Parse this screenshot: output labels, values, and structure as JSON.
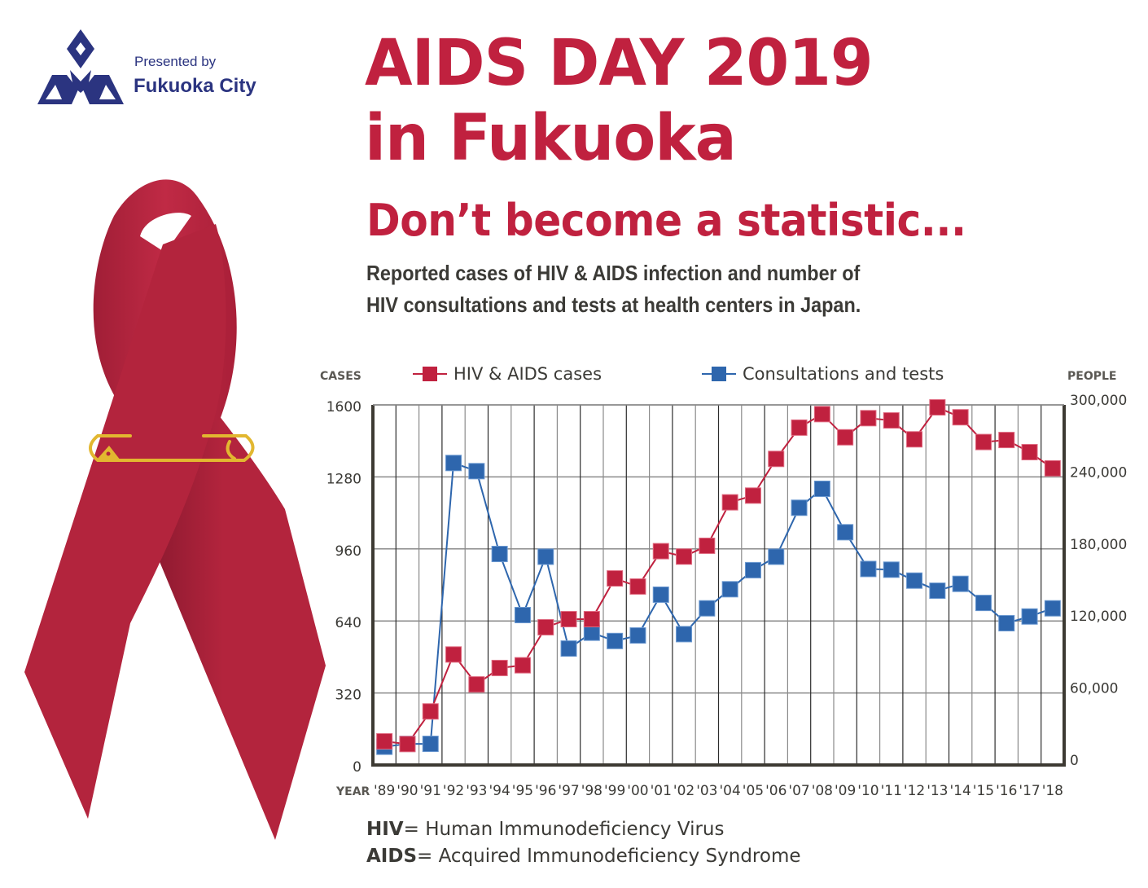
{
  "header": {
    "presented_by": "Presented by",
    "organization": "Fukuoka City",
    "title_line1": "AIDS DAY 2019",
    "title_line2": "in Fukuoka",
    "tagline": "Don’t become a statistic...",
    "subtitle_line1": "Reported cases of HIV & AIDS infection and number of",
    "subtitle_line2": "HIV consultations and tests at health centers in Japan."
  },
  "footer": {
    "definitions": [
      {
        "term": "HIV",
        "meaning": "= Human Immunodeficiency Virus"
      },
      {
        "term": "AIDS",
        "meaning": "= Acquired Immunodeficiency Syndrome"
      }
    ]
  },
  "colors": {
    "brand_red": "#c0213f",
    "logo_navy": "#2b3480",
    "series_red": "#c0213f",
    "series_blue": "#2e66ad",
    "ribbon_red": "#b3243d",
    "pin_gold": "#e2b730",
    "text_dark": "#3b3a36"
  },
  "chart_data": {
    "type": "line",
    "title": "Reported cases of HIV & AIDS infection and number of HIV consultations and tests at health centers in Japan.",
    "xlabel": "YEAR",
    "ylabel_left": "CASES",
    "ylabel_right": "PEOPLE",
    "x": [
      "'89",
      "'90",
      "'91",
      "'92",
      "'93",
      "'94",
      "'95",
      "'96",
      "'97",
      "'98",
      "'99",
      "'00",
      "'01",
      "'02",
      "'03",
      "'04",
      "'05",
      "'06",
      "'07",
      "'08",
      "'09",
      "'10",
      "'11",
      "'12",
      "'13",
      "'14",
      "'15",
      "'16",
      "'17",
      "'18"
    ],
    "ylim_left": [
      0,
      1600
    ],
    "yticks_left": [
      "0",
      "320",
      "640",
      "960",
      "1280",
      "1600"
    ],
    "ylim_right": [
      0,
      300000
    ],
    "yticks_right": [
      "0",
      "60,000",
      "120,000",
      "180,000",
      "240,000",
      "300,000"
    ],
    "grid": true,
    "legend_position": "top",
    "series": [
      {
        "name": "HIV & AIDS cases",
        "axis": "left",
        "marker": "square",
        "values": [
          105,
          93,
          238,
          491,
          358,
          431,
          443,
          612,
          648,
          648,
          829,
          793,
          950,
          926,
          974,
          1167,
          1197,
          1360,
          1499,
          1559,
          1456,
          1541,
          1531,
          1447,
          1589,
          1545,
          1435,
          1444,
          1390,
          1318
        ]
      },
      {
        "name": "Consultations and tests",
        "axis": "right",
        "marker": "square",
        "values": [
          15200,
          17600,
          17600,
          251600,
          244800,
          175800,
          124900,
          173500,
          97000,
          110200,
          103300,
          107900,
          141900,
          109000,
          130500,
          146400,
          162300,
          173500,
          214300,
          230100,
          193900,
          163300,
          162700,
          153600,
          145200,
          150900,
          135000,
          118100,
          123700,
          130500
        ]
      }
    ]
  }
}
